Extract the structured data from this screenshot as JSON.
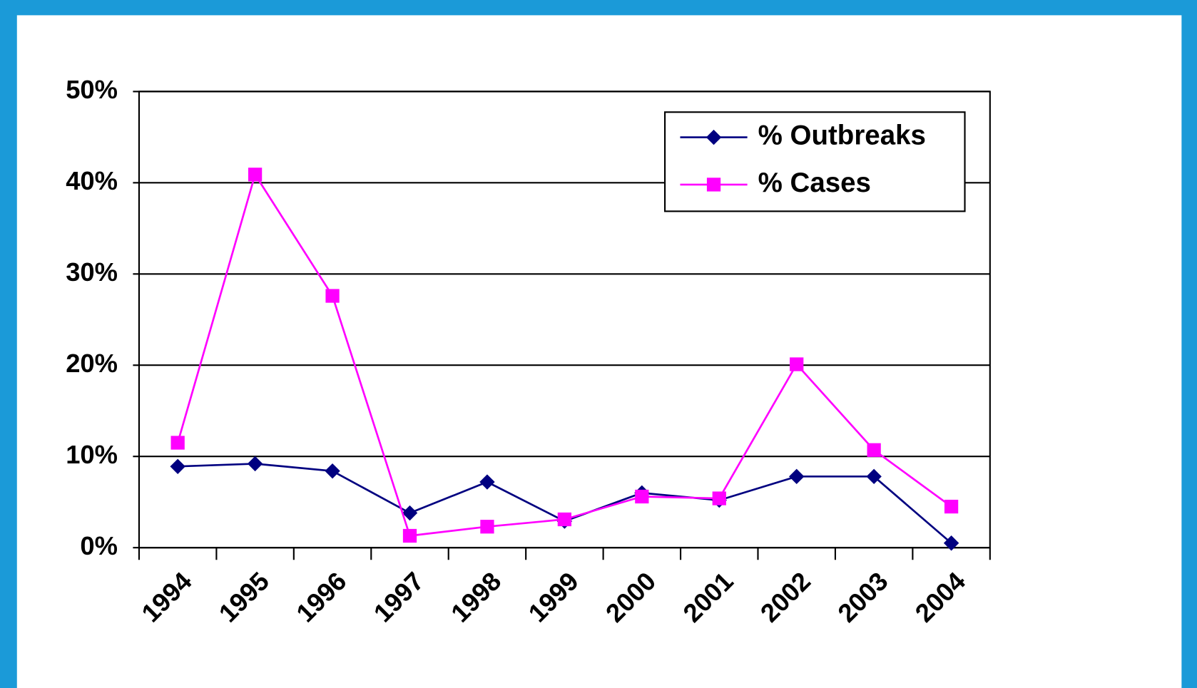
{
  "chart_data": {
    "type": "line",
    "categories": [
      "1994",
      "1995",
      "1996",
      "1997",
      "1998",
      "1999",
      "2000",
      "2001",
      "2002",
      "2003",
      "2004"
    ],
    "series": [
      {
        "name": "% Outbreaks",
        "color": "#000080",
        "marker": "diamond",
        "values": [
          8.9,
          9.2,
          8.4,
          3.8,
          7.2,
          2.9,
          6.0,
          5.2,
          7.8,
          7.8,
          0.5
        ]
      },
      {
        "name": "% Cases",
        "color": "#ff00ff",
        "marker": "square",
        "values": [
          11.5,
          40.9,
          27.6,
          1.3,
          2.3,
          3.1,
          5.6,
          5.4,
          20.1,
          10.7,
          4.5
        ]
      }
    ],
    "ylim": [
      0,
      50
    ],
    "yticks": [
      {
        "value": 0,
        "label": "0%"
      },
      {
        "value": 10,
        "label": "10%"
      },
      {
        "value": 20,
        "label": "20%"
      },
      {
        "value": 30,
        "label": "30%"
      },
      {
        "value": 40,
        "label": "40%"
      },
      {
        "value": 50,
        "label": "50%"
      }
    ],
    "grid": true,
    "legend": "upper right"
  }
}
